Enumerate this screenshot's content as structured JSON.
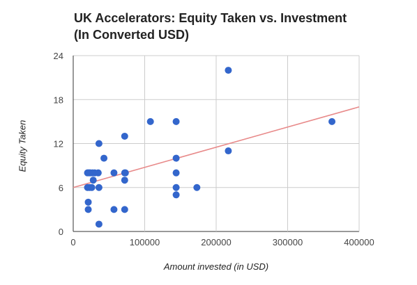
{
  "chart_data": {
    "type": "scatter",
    "title_lines": [
      "UK Accelerators: Equity Taken vs. Investment",
      "(In Converted USD)"
    ],
    "xlabel": "Amount invested (in USD)",
    "ylabel": "Equity Taken",
    "xlim": [
      0,
      400000
    ],
    "ylim": [
      0,
      24
    ],
    "xticks": [
      0,
      100000,
      200000,
      300000,
      400000
    ],
    "xtick_labels": [
      "0",
      "100000",
      "200000",
      "300000",
      "400000"
    ],
    "yticks": [
      0,
      6,
      12,
      18,
      24
    ],
    "ytick_labels": [
      "0",
      "6",
      "12",
      "18",
      "24"
    ],
    "grid": true,
    "point_color": "#3366cc",
    "trendline_color": "#e88a8a",
    "trendline": {
      "x": [
        0,
        400000
      ],
      "y": [
        6.0,
        17.0
      ]
    },
    "points": [
      {
        "x": 20000,
        "y": 8
      },
      {
        "x": 22000,
        "y": 8
      },
      {
        "x": 24000,
        "y": 8
      },
      {
        "x": 27000,
        "y": 8
      },
      {
        "x": 30000,
        "y": 8
      },
      {
        "x": 35000,
        "y": 8
      },
      {
        "x": 20000,
        "y": 6
      },
      {
        "x": 23000,
        "y": 6
      },
      {
        "x": 26000,
        "y": 6
      },
      {
        "x": 36000,
        "y": 6
      },
      {
        "x": 28000,
        "y": 7
      },
      {
        "x": 21000,
        "y": 4
      },
      {
        "x": 21000,
        "y": 3
      },
      {
        "x": 36000,
        "y": 12
      },
      {
        "x": 43000,
        "y": 10
      },
      {
        "x": 36000,
        "y": 1
      },
      {
        "x": 57000,
        "y": 8
      },
      {
        "x": 57000,
        "y": 3
      },
      {
        "x": 72000,
        "y": 13
      },
      {
        "x": 72000,
        "y": 8
      },
      {
        "x": 73000,
        "y": 8
      },
      {
        "x": 72000,
        "y": 7
      },
      {
        "x": 72000,
        "y": 3
      },
      {
        "x": 108000,
        "y": 15
      },
      {
        "x": 144000,
        "y": 15
      },
      {
        "x": 144000,
        "y": 10
      },
      {
        "x": 144000,
        "y": 8
      },
      {
        "x": 144000,
        "y": 6
      },
      {
        "x": 144000,
        "y": 5
      },
      {
        "x": 173000,
        "y": 6
      },
      {
        "x": 217000,
        "y": 22
      },
      {
        "x": 217000,
        "y": 11
      },
      {
        "x": 362000,
        "y": 15
      }
    ]
  }
}
